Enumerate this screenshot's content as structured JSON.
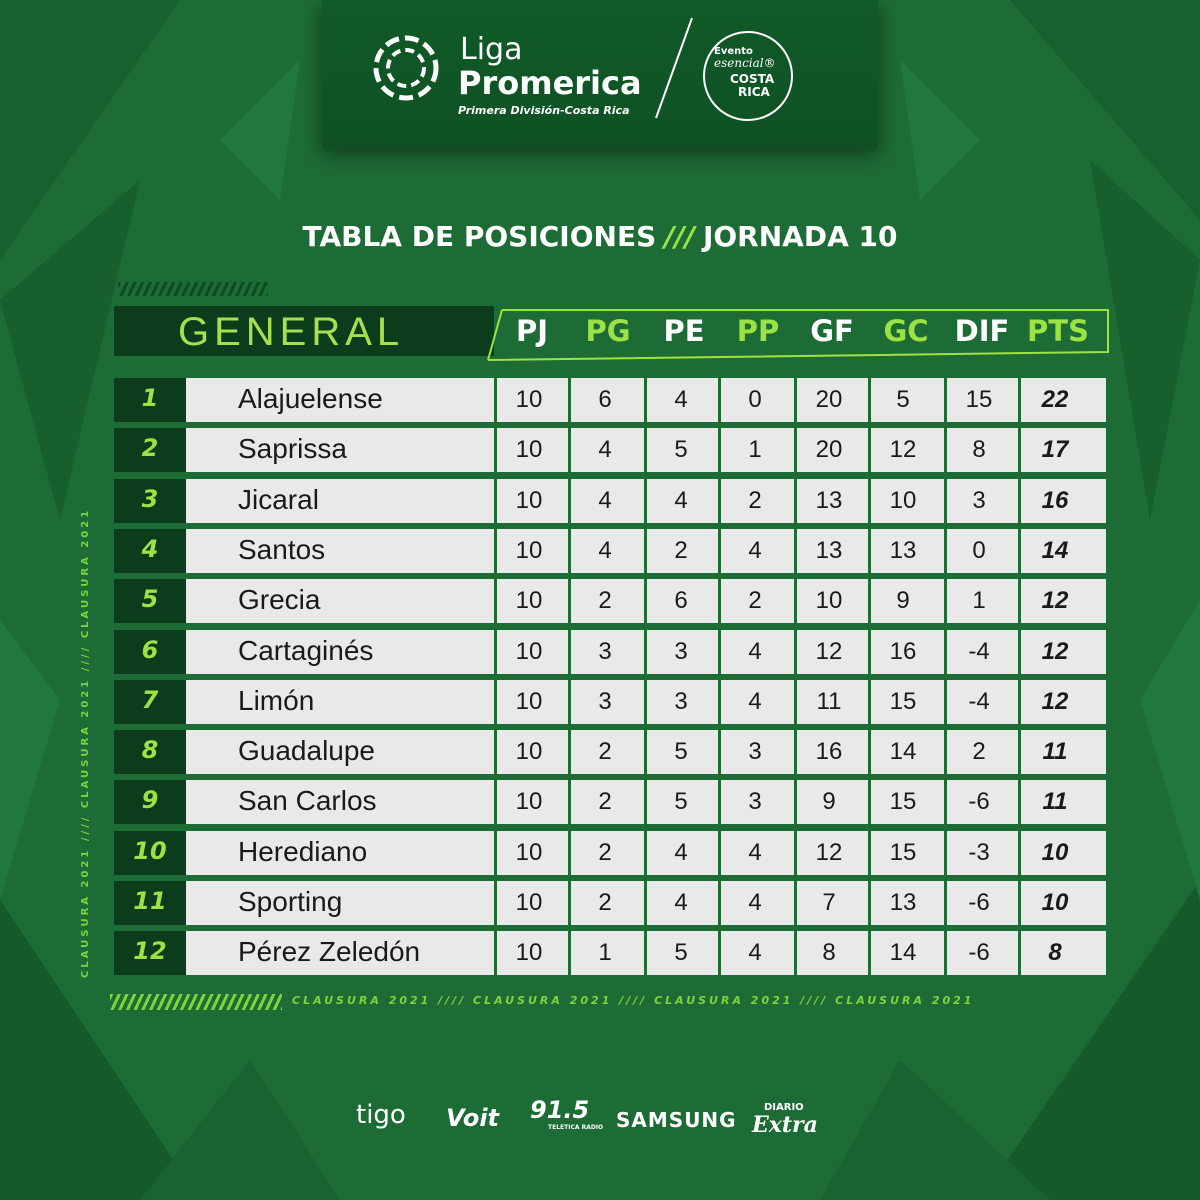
{
  "header": {
    "liga": "Liga",
    "promerica": "Promerica",
    "subtitle": "Primera División-Costa Rica",
    "evento_line1": "Evento",
    "evento_line2": "esencial®",
    "evento_line3": "COSTA",
    "evento_line4": "RICA"
  },
  "title": {
    "left": "TABLA DE POSICIONES",
    "sep": "///",
    "right": "JORNADA 10"
  },
  "table": {
    "section_label": "GENERAL",
    "columns": [
      "PJ",
      "PG",
      "PE",
      "PP",
      "GF",
      "GC",
      "DIF",
      "PTS"
    ],
    "rows": [
      {
        "pos": "1",
        "team": "Alajuelense",
        "pj": "10",
        "pg": "6",
        "pe": "4",
        "pp": "0",
        "gf": "20",
        "gc": "5",
        "dif": "15",
        "pts": "22"
      },
      {
        "pos": "2",
        "team": "Saprissa",
        "pj": "10",
        "pg": "4",
        "pe": "5",
        "pp": "1",
        "gf": "20",
        "gc": "12",
        "dif": "8",
        "pts": "17"
      },
      {
        "pos": "3",
        "team": "Jicaral",
        "pj": "10",
        "pg": "4",
        "pe": "4",
        "pp": "2",
        "gf": "13",
        "gc": "10",
        "dif": "3",
        "pts": "16"
      },
      {
        "pos": "4",
        "team": "Santos",
        "pj": "10",
        "pg": "4",
        "pe": "2",
        "pp": "4",
        "gf": "13",
        "gc": "13",
        "dif": "0",
        "pts": "14"
      },
      {
        "pos": "5",
        "team": "Grecia",
        "pj": "10",
        "pg": "2",
        "pe": "6",
        "pp": "2",
        "gf": "10",
        "gc": "9",
        "dif": "1",
        "pts": "12"
      },
      {
        "pos": "6",
        "team": "Cartaginés",
        "pj": "10",
        "pg": "3",
        "pe": "3",
        "pp": "4",
        "gf": "12",
        "gc": "16",
        "dif": "-4",
        "pts": "12"
      },
      {
        "pos": "7",
        "team": "Limón",
        "pj": "10",
        "pg": "3",
        "pe": "3",
        "pp": "4",
        "gf": "11",
        "gc": "15",
        "dif": "-4",
        "pts": "12"
      },
      {
        "pos": "8",
        "team": "Guadalupe",
        "pj": "10",
        "pg": "2",
        "pe": "5",
        "pp": "3",
        "gf": "16",
        "gc": "14",
        "dif": "2",
        "pts": "11"
      },
      {
        "pos": "9",
        "team": "San Carlos",
        "pj": "10",
        "pg": "2",
        "pe": "5",
        "pp": "3",
        "gf": "9",
        "gc": "15",
        "dif": "-6",
        "pts": "11"
      },
      {
        "pos": "10",
        "team": "Herediano",
        "pj": "10",
        "pg": "2",
        "pe": "4",
        "pp": "4",
        "gf": "12",
        "gc": "15",
        "dif": "-3",
        "pts": "10"
      },
      {
        "pos": "11",
        "team": "Sporting",
        "pj": "10",
        "pg": "2",
        "pe": "4",
        "pp": "4",
        "gf": "7",
        "gc": "13",
        "dif": "-6",
        "pts": "10"
      },
      {
        "pos": "12",
        "team": "Pérez Zeledón",
        "pj": "10",
        "pg": "1",
        "pe": "5",
        "pp": "4",
        "gf": "8",
        "gc": "14",
        "dif": "-6",
        "pts": "8"
      }
    ]
  },
  "clausura_side": "CLAUSURA 2021 //// CLAUSURA 2021 //// CLAUSURA 2021",
  "clausura_bottom": "CLAUSURA 2021 //// CLAUSURA 2021 //// CLAUSURA 2021 //// CLAUSURA 2021",
  "sponsors": {
    "tigo": "tigo",
    "voit": "Voit",
    "radio_number": "91.5",
    "radio_sub": "TELETICA RADIO",
    "samsung": "SAMSUNG",
    "diario": "DIARIO",
    "extra": "Extra"
  },
  "colors": {
    "background": "#1d6b35",
    "accent": "#9be345",
    "row_bg": "#e9e9e9",
    "dark_cell": "#0b3d1c"
  }
}
